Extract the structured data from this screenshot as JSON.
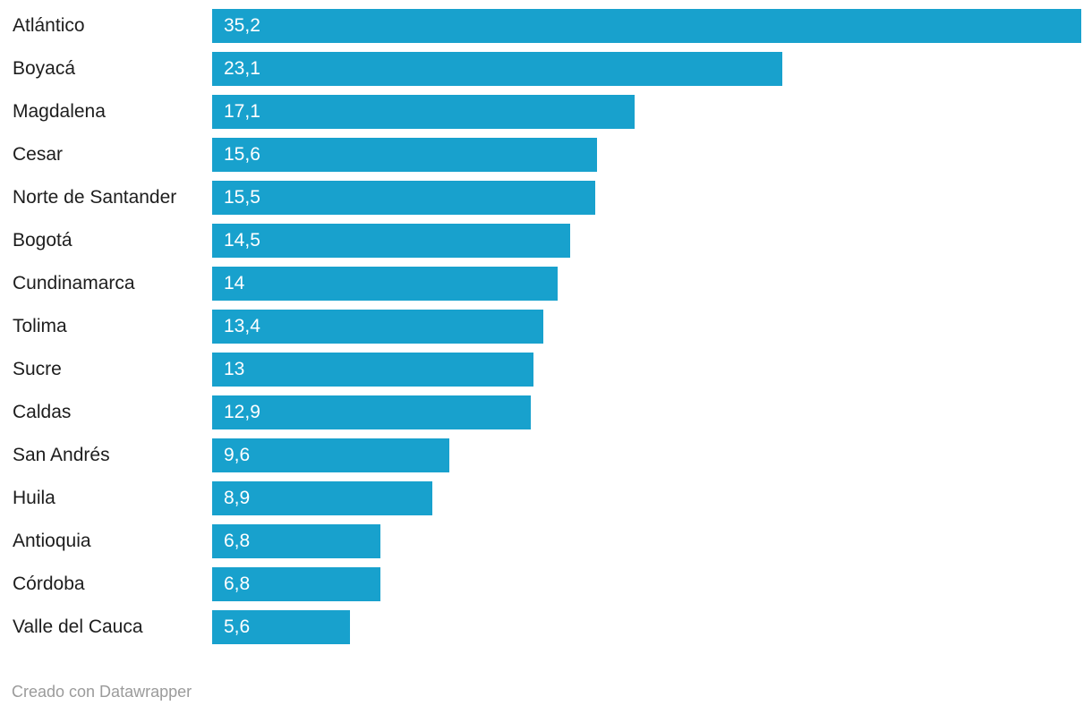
{
  "chart_data": {
    "type": "bar",
    "orientation": "horizontal",
    "title": "",
    "xlabel": "",
    "ylabel": "",
    "xlim": [
      0,
      35.2
    ],
    "grid": false,
    "legend": false,
    "categories": [
      "Atlántico",
      "Boyacá",
      "Magdalena",
      "Cesar",
      "Norte de Santander",
      "Bogotá",
      "Cundinamarca",
      "Tolima",
      "Sucre",
      "Caldas",
      "San Andrés",
      "Huila",
      "Antioquia",
      "Córdoba",
      "Valle del Cauca"
    ],
    "values": [
      35.2,
      23.1,
      17.1,
      15.6,
      15.5,
      14.5,
      14,
      13.4,
      13,
      12.9,
      9.6,
      8.9,
      6.8,
      6.8,
      5.6
    ],
    "value_labels": [
      "35,2",
      "23,1",
      "17,1",
      "15,6",
      "15,5",
      "14,5",
      "14",
      "13,4",
      "13",
      "12,9",
      "9,6",
      "8,9",
      "6,8",
      "6,8",
      "5,6"
    ]
  },
  "colors": {
    "bar": "#18a1cd",
    "category_label": "#1d1d1d",
    "value_label": "#ffffff",
    "footer": "#9b9b9b",
    "background": "#ffffff"
  },
  "footer": {
    "credit": "Creado con Datawrapper"
  }
}
